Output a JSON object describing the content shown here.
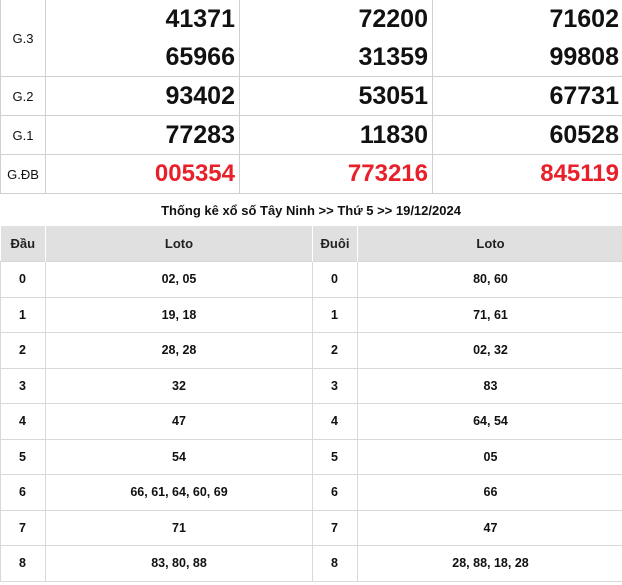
{
  "prizes": [
    {
      "label": "G.3",
      "values": [
        [
          "41371",
          "65966"
        ],
        [
          "72200",
          "31359"
        ],
        [
          "71602",
          "99808"
        ]
      ]
    },
    {
      "label": "G.2",
      "values": [
        [
          "93402"
        ],
        [
          "53051"
        ],
        [
          "67731"
        ]
      ]
    },
    {
      "label": "G.1",
      "values": [
        [
          "77283"
        ],
        [
          "11830"
        ],
        [
          "60528"
        ]
      ]
    },
    {
      "label": "G.ĐB",
      "values": [
        [
          "005354"
        ],
        [
          "773216"
        ],
        [
          "845119"
        ]
      ],
      "highlight": true
    }
  ],
  "colors": {
    "special_prize": "#e8202a",
    "header_bg": "#e0e0e0"
  },
  "stats_title": "Thống kê xổ số Tây Ninh >> Thứ 5 >> 19/12/2024",
  "loto_table": {
    "headers": [
      "Đầu",
      "Loto",
      "Đuôi",
      "Loto"
    ],
    "rows": [
      {
        "dau": "0",
        "dau_loto": "02, 05",
        "duoi": "0",
        "duoi_loto": "80, 60"
      },
      {
        "dau": "1",
        "dau_loto": "19, 18",
        "duoi": "1",
        "duoi_loto": "71, 61"
      },
      {
        "dau": "2",
        "dau_loto": "28, 28",
        "duoi": "2",
        "duoi_loto": "02, 32"
      },
      {
        "dau": "3",
        "dau_loto": "32",
        "duoi": "3",
        "duoi_loto": "83"
      },
      {
        "dau": "4",
        "dau_loto": "47",
        "duoi": "4",
        "duoi_loto": "64, 54"
      },
      {
        "dau": "5",
        "dau_loto": "54",
        "duoi": "5",
        "duoi_loto": "05"
      },
      {
        "dau": "6",
        "dau_loto": "66, 61, 64, 60, 69",
        "duoi": "6",
        "duoi_loto": "66"
      },
      {
        "dau": "7",
        "dau_loto": "71",
        "duoi": "7",
        "duoi_loto": "47"
      },
      {
        "dau": "8",
        "dau_loto": "83, 80, 88",
        "duoi": "8",
        "duoi_loto": "28, 88, 18, 28"
      }
    ]
  }
}
